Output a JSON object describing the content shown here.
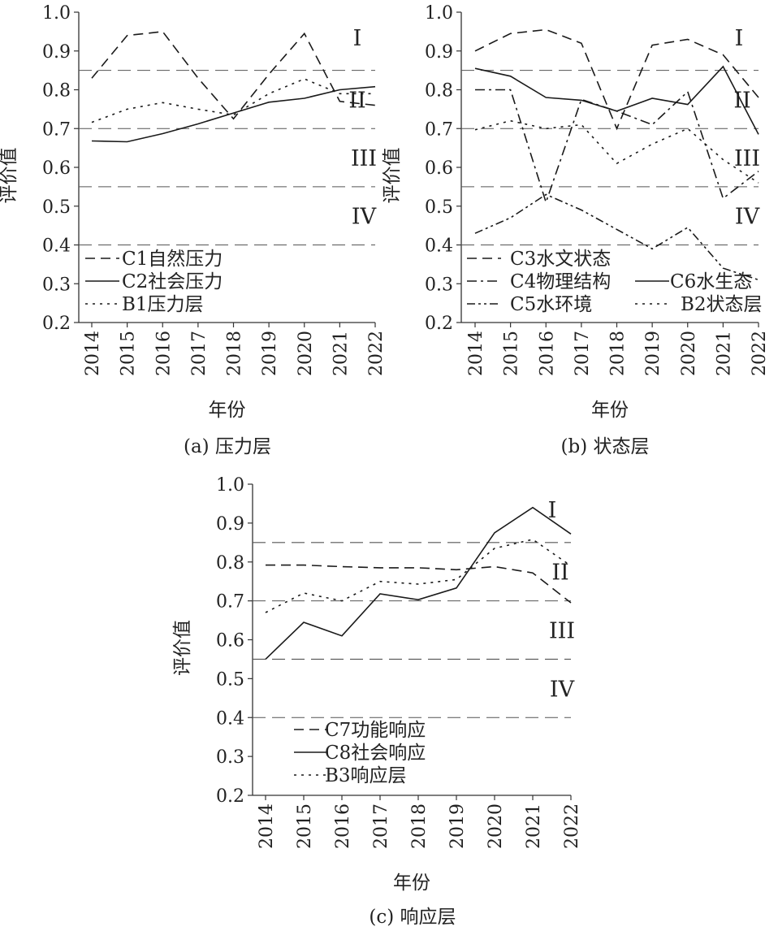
{
  "chart_data": [
    {
      "type": "line",
      "caption": "(a) 压力层",
      "xlabel": "年份",
      "ylabel": "评价值",
      "ylim": [
        0.2,
        1.0
      ],
      "yticks": [
        "0.2",
        "0.3",
        "0.4",
        "0.5",
        "0.6",
        "0.7",
        "0.8",
        "0.9",
        "1.0"
      ],
      "x": [
        "2014",
        "2015",
        "2016",
        "2017",
        "2018",
        "2019",
        "2020",
        "2021",
        "2022"
      ],
      "thresholds": [
        0.85,
        0.7,
        0.55,
        0.4
      ],
      "grades": [
        "I",
        "II",
        "III",
        "IV"
      ],
      "series": [
        {
          "name": "C1自然压力",
          "style": "dashed",
          "values": [
            0.83,
            0.94,
            0.95,
            0.83,
            0.725,
            0.84,
            0.945,
            0.77,
            0.76
          ]
        },
        {
          "name": "C2社会压力",
          "style": "solid",
          "values": [
            0.668,
            0.666,
            0.687,
            0.712,
            0.74,
            0.768,
            0.778,
            0.8,
            0.808
          ]
        },
        {
          "name": "B1压力层",
          "style": "dotted",
          "values": [
            0.716,
            0.75,
            0.767,
            0.75,
            0.735,
            0.79,
            0.828,
            0.79,
            0.79
          ]
        }
      ]
    },
    {
      "type": "line",
      "caption": "(b) 状态层",
      "xlabel": "年份",
      "ylabel": "评价值",
      "ylim": [
        0.2,
        1.0
      ],
      "yticks": [
        "0.2",
        "0.3",
        "0.4",
        "0.5",
        "0.6",
        "0.7",
        "0.8",
        "0.9",
        "1.0"
      ],
      "x": [
        "2014",
        "2015",
        "2016",
        "2017",
        "2018",
        "2019",
        "2020",
        "2021",
        "2022"
      ],
      "thresholds": [
        0.85,
        0.7,
        0.55,
        0.4
      ],
      "grades": [
        "I",
        "II",
        "III",
        "IV"
      ],
      "series": [
        {
          "name": "C3水文状态",
          "style": "dashed",
          "values": [
            0.9,
            0.945,
            0.955,
            0.92,
            0.7,
            0.915,
            0.93,
            0.89,
            0.78
          ]
        },
        {
          "name": "C4物理结构",
          "style": "dashdot",
          "values": [
            0.8,
            0.8,
            0.51,
            0.775,
            0.745,
            0.71,
            0.795,
            0.52,
            0.59
          ]
        },
        {
          "name": "C5水环境",
          "style": "dashdotdot",
          "values": [
            0.43,
            0.47,
            0.53,
            0.49,
            0.44,
            0.39,
            0.445,
            0.34,
            0.31
          ]
        },
        {
          "name": "C6水生态",
          "style": "solid",
          "values": [
            0.855,
            0.835,
            0.78,
            0.773,
            0.745,
            0.778,
            0.762,
            0.86,
            0.685
          ]
        },
        {
          "name": "B2状态层",
          "style": "dotted",
          "values": [
            0.697,
            0.72,
            0.7,
            0.71,
            0.61,
            0.66,
            0.7,
            0.62,
            0.56
          ]
        }
      ]
    },
    {
      "type": "line",
      "caption": "(c) 响应层",
      "xlabel": "年份",
      "ylabel": "评价值",
      "ylim": [
        0.2,
        1.0
      ],
      "yticks": [
        "0.2",
        "0.3",
        "0.4",
        "0.5",
        "0.6",
        "0.7",
        "0.8",
        "0.9",
        "1.0"
      ],
      "x": [
        "2014",
        "2015",
        "2016",
        "2017",
        "2018",
        "2019",
        "2020",
        "2021",
        "2022"
      ],
      "thresholds": [
        0.85,
        0.7,
        0.55,
        0.4
      ],
      "grades": [
        "I",
        "II",
        "III",
        "IV"
      ],
      "series": [
        {
          "name": "C7功能响应",
          "style": "dashed",
          "values": [
            0.792,
            0.792,
            0.788,
            0.785,
            0.785,
            0.78,
            0.788,
            0.772,
            0.695
          ]
        },
        {
          "name": "C8社会响应",
          "style": "solid",
          "values": [
            0.55,
            0.645,
            0.61,
            0.718,
            0.703,
            0.733,
            0.875,
            0.94,
            0.872
          ]
        },
        {
          "name": "B3响应层",
          "style": "dotted",
          "values": [
            0.67,
            0.72,
            0.7,
            0.75,
            0.743,
            0.755,
            0.835,
            0.858,
            0.79
          ]
        }
      ]
    }
  ]
}
